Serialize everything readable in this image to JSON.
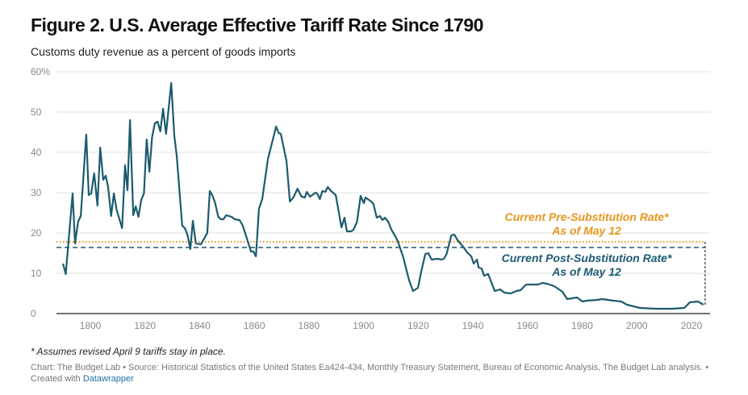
{
  "chart_data": {
    "type": "line",
    "title": "Figure 2. U.S. Average Effective Tariff Rate Since 1790",
    "subtitle": "Customs duty revenue as a percent of goods imports",
    "xlabel": "",
    "ylabel": "",
    "xlim": [
      1790,
      2025
    ],
    "ylim": [
      0,
      60
    ],
    "grid": true,
    "y_ticks": [
      {
        "value": 60,
        "label": "60%"
      },
      {
        "value": 50,
        "label": "50"
      },
      {
        "value": 40,
        "label": "40"
      },
      {
        "value": 30,
        "label": "30"
      },
      {
        "value": 20,
        "label": "20"
      },
      {
        "value": 10,
        "label": "10"
      },
      {
        "value": 0,
        "label": "0"
      }
    ],
    "x_ticks": [
      {
        "value": 1800,
        "label": "1800"
      },
      {
        "value": 1820,
        "label": "1820"
      },
      {
        "value": 1840,
        "label": "1840"
      },
      {
        "value": 1860,
        "label": "1860"
      },
      {
        "value": 1880,
        "label": "1880"
      },
      {
        "value": 1900,
        "label": "1900"
      },
      {
        "value": 1920,
        "label": "1920"
      },
      {
        "value": 1940,
        "label": "1940"
      },
      {
        "value": 1960,
        "label": "1960"
      },
      {
        "value": 1980,
        "label": "1980"
      },
      {
        "value": 2000,
        "label": "2000"
      },
      {
        "value": 2020,
        "label": "2020"
      }
    ],
    "series": [
      {
        "name": "Average effective tariff rate",
        "color": "#1c5b6e",
        "x": [
          1790,
          1791,
          1793.5,
          1794.4,
          1795.5,
          1796.5,
          1798.5,
          1799.4,
          1800.3,
          1801.4,
          1802.6,
          1803.6,
          1804.7,
          1805.6,
          1806.5,
          1807.6,
          1808.6,
          1809.6,
          1811.6,
          1812.7,
          1813.6,
          1814.5,
          1815.7,
          1816.6,
          1817.6,
          1818.6,
          1819.6,
          1820.6,
          1821.6,
          1822.6,
          1823.6,
          1824.6,
          1825.6,
          1826.6,
          1827.7,
          1829.6,
          1830.7,
          1831.6,
          1833.6,
          1834.6,
          1835.6,
          1836.6,
          1837.5,
          1838.6,
          1840.5,
          1842.8,
          1843.7,
          1844.6,
          1845.6,
          1846.8,
          1847.8,
          1848.7,
          1849.7,
          1851.7,
          1852.8,
          1854.6,
          1855.8,
          1858.8,
          1859.7,
          1860.6,
          1861.7,
          1862.9,
          1865,
          1868,
          1868.9,
          1869.7,
          1871.8,
          1873,
          1874.3,
          1875.8,
          1877.3,
          1878.5,
          1879.2,
          1880.4,
          1882.4,
          1883,
          1884,
          1884.9,
          1886,
          1886.9,
          1888.1,
          1889.8,
          1891.9,
          1893,
          1893.9,
          1895.4,
          1896.3,
          1897.6,
          1898.9,
          1900.1,
          1900.7,
          1902.8,
          1903.6,
          1904.8,
          1906,
          1906.9,
          1907.8,
          1909,
          1910.2,
          1911.6,
          1912.5,
          1914.6,
          1916.6,
          1918.1,
          1919.9,
          1921.1,
          1922.6,
          1923.7,
          1924.9,
          1927,
          1928.5,
          1929.4,
          1930.4,
          1932.1,
          1933.2,
          1934.4,
          1936.2,
          1937.9,
          1939.4,
          1940.3,
          1941.5,
          1942.1,
          1943.2,
          1944.1,
          1945.6,
          1948,
          1950,
          1951.5,
          1953.9,
          1955.9,
          1957.4,
          1959.5,
          1961.8,
          1963.9,
          1965.4,
          1967.2,
          1969.8,
          1972.8,
          1974.5,
          1978.1,
          1980.1,
          1981.6,
          1985.5,
          1987.5,
          1991.4,
          1994.3,
          1996.4,
          2001.1,
          2007,
          2012.9,
          2017.4,
          2019.4,
          2022.4,
          2024.4
        ],
        "values": [
          12.4,
          9.8,
          29.8,
          17.4,
          22.8,
          24.2,
          44.4,
          29.4,
          29.8,
          34.8,
          26.8,
          41.2,
          33.2,
          34.2,
          31.4,
          24.2,
          29.8,
          25.8,
          21.2,
          36.8,
          30.6,
          48,
          24.4,
          26.6,
          24,
          28.2,
          29.8,
          43.2,
          35.2,
          43.8,
          47.2,
          47.6,
          45.2,
          50.8,
          44.6,
          57.2,
          44.2,
          39.2,
          21.8,
          21.2,
          19.4,
          16,
          23,
          17.4,
          17.2,
          20,
          30.4,
          29.4,
          27.6,
          24,
          23.4,
          23.4,
          24.4,
          24,
          23.4,
          23.2,
          21.8,
          15.4,
          15.4,
          14.2,
          26,
          28.4,
          38.4,
          46.4,
          44.8,
          44.6,
          37.8,
          27.8,
          28.8,
          31,
          29,
          28.8,
          30.2,
          29,
          30,
          29.8,
          28.4,
          30.4,
          30.2,
          31.4,
          30.4,
          29.4,
          21.4,
          23.8,
          20.4,
          20.4,
          20.8,
          22.8,
          29.2,
          27.4,
          28.8,
          27.8,
          27.2,
          23.8,
          24.2,
          23.2,
          23.8,
          22.8,
          20.8,
          19.2,
          18,
          13.8,
          8.4,
          5.6,
          6.4,
          10.4,
          14.8,
          15,
          13.4,
          13.6,
          13.4,
          13.6,
          14.8,
          19.4,
          19.6,
          18.2,
          16.8,
          15.2,
          14.2,
          12.4,
          13.4,
          11.4,
          11.2,
          9.4,
          9.8,
          5.6,
          6,
          5.2,
          5,
          5.6,
          5.8,
          7.2,
          7.2,
          7.2,
          7.6,
          7.4,
          6.8,
          5.4,
          3.6,
          4,
          3,
          3.2,
          3.4,
          3.6,
          3.2,
          3,
          2.2,
          1.4,
          1.2,
          1.2,
          1.4,
          2.8,
          3,
          2.2
        ]
      }
    ],
    "reference_lines": [
      {
        "name": "pre-substitution",
        "value": 17.8,
        "color": "#e8961e",
        "style": "dotted",
        "label_line1": "Current Pre-Substitution Rate*",
        "label_line2": "As of May 12"
      },
      {
        "name": "post-substitution",
        "value": 16.4,
        "color": "#1d5a73",
        "style": "dashed",
        "label_line1": "Current Post-Substitution Rate*",
        "label_line2": "As of May 12"
      }
    ],
    "reference_end_year": 2025
  },
  "footnote": "* Assumes revised April 9 tariffs stay in place.",
  "source": {
    "text": "Chart: The Budget Lab • Source: Historical Statistics of the United States Ea424-434, Monthly Treasury Statement, Bureau of Economic Analysis, The Budget Lab analysis. • Created with ",
    "link": "Datawrapper"
  }
}
